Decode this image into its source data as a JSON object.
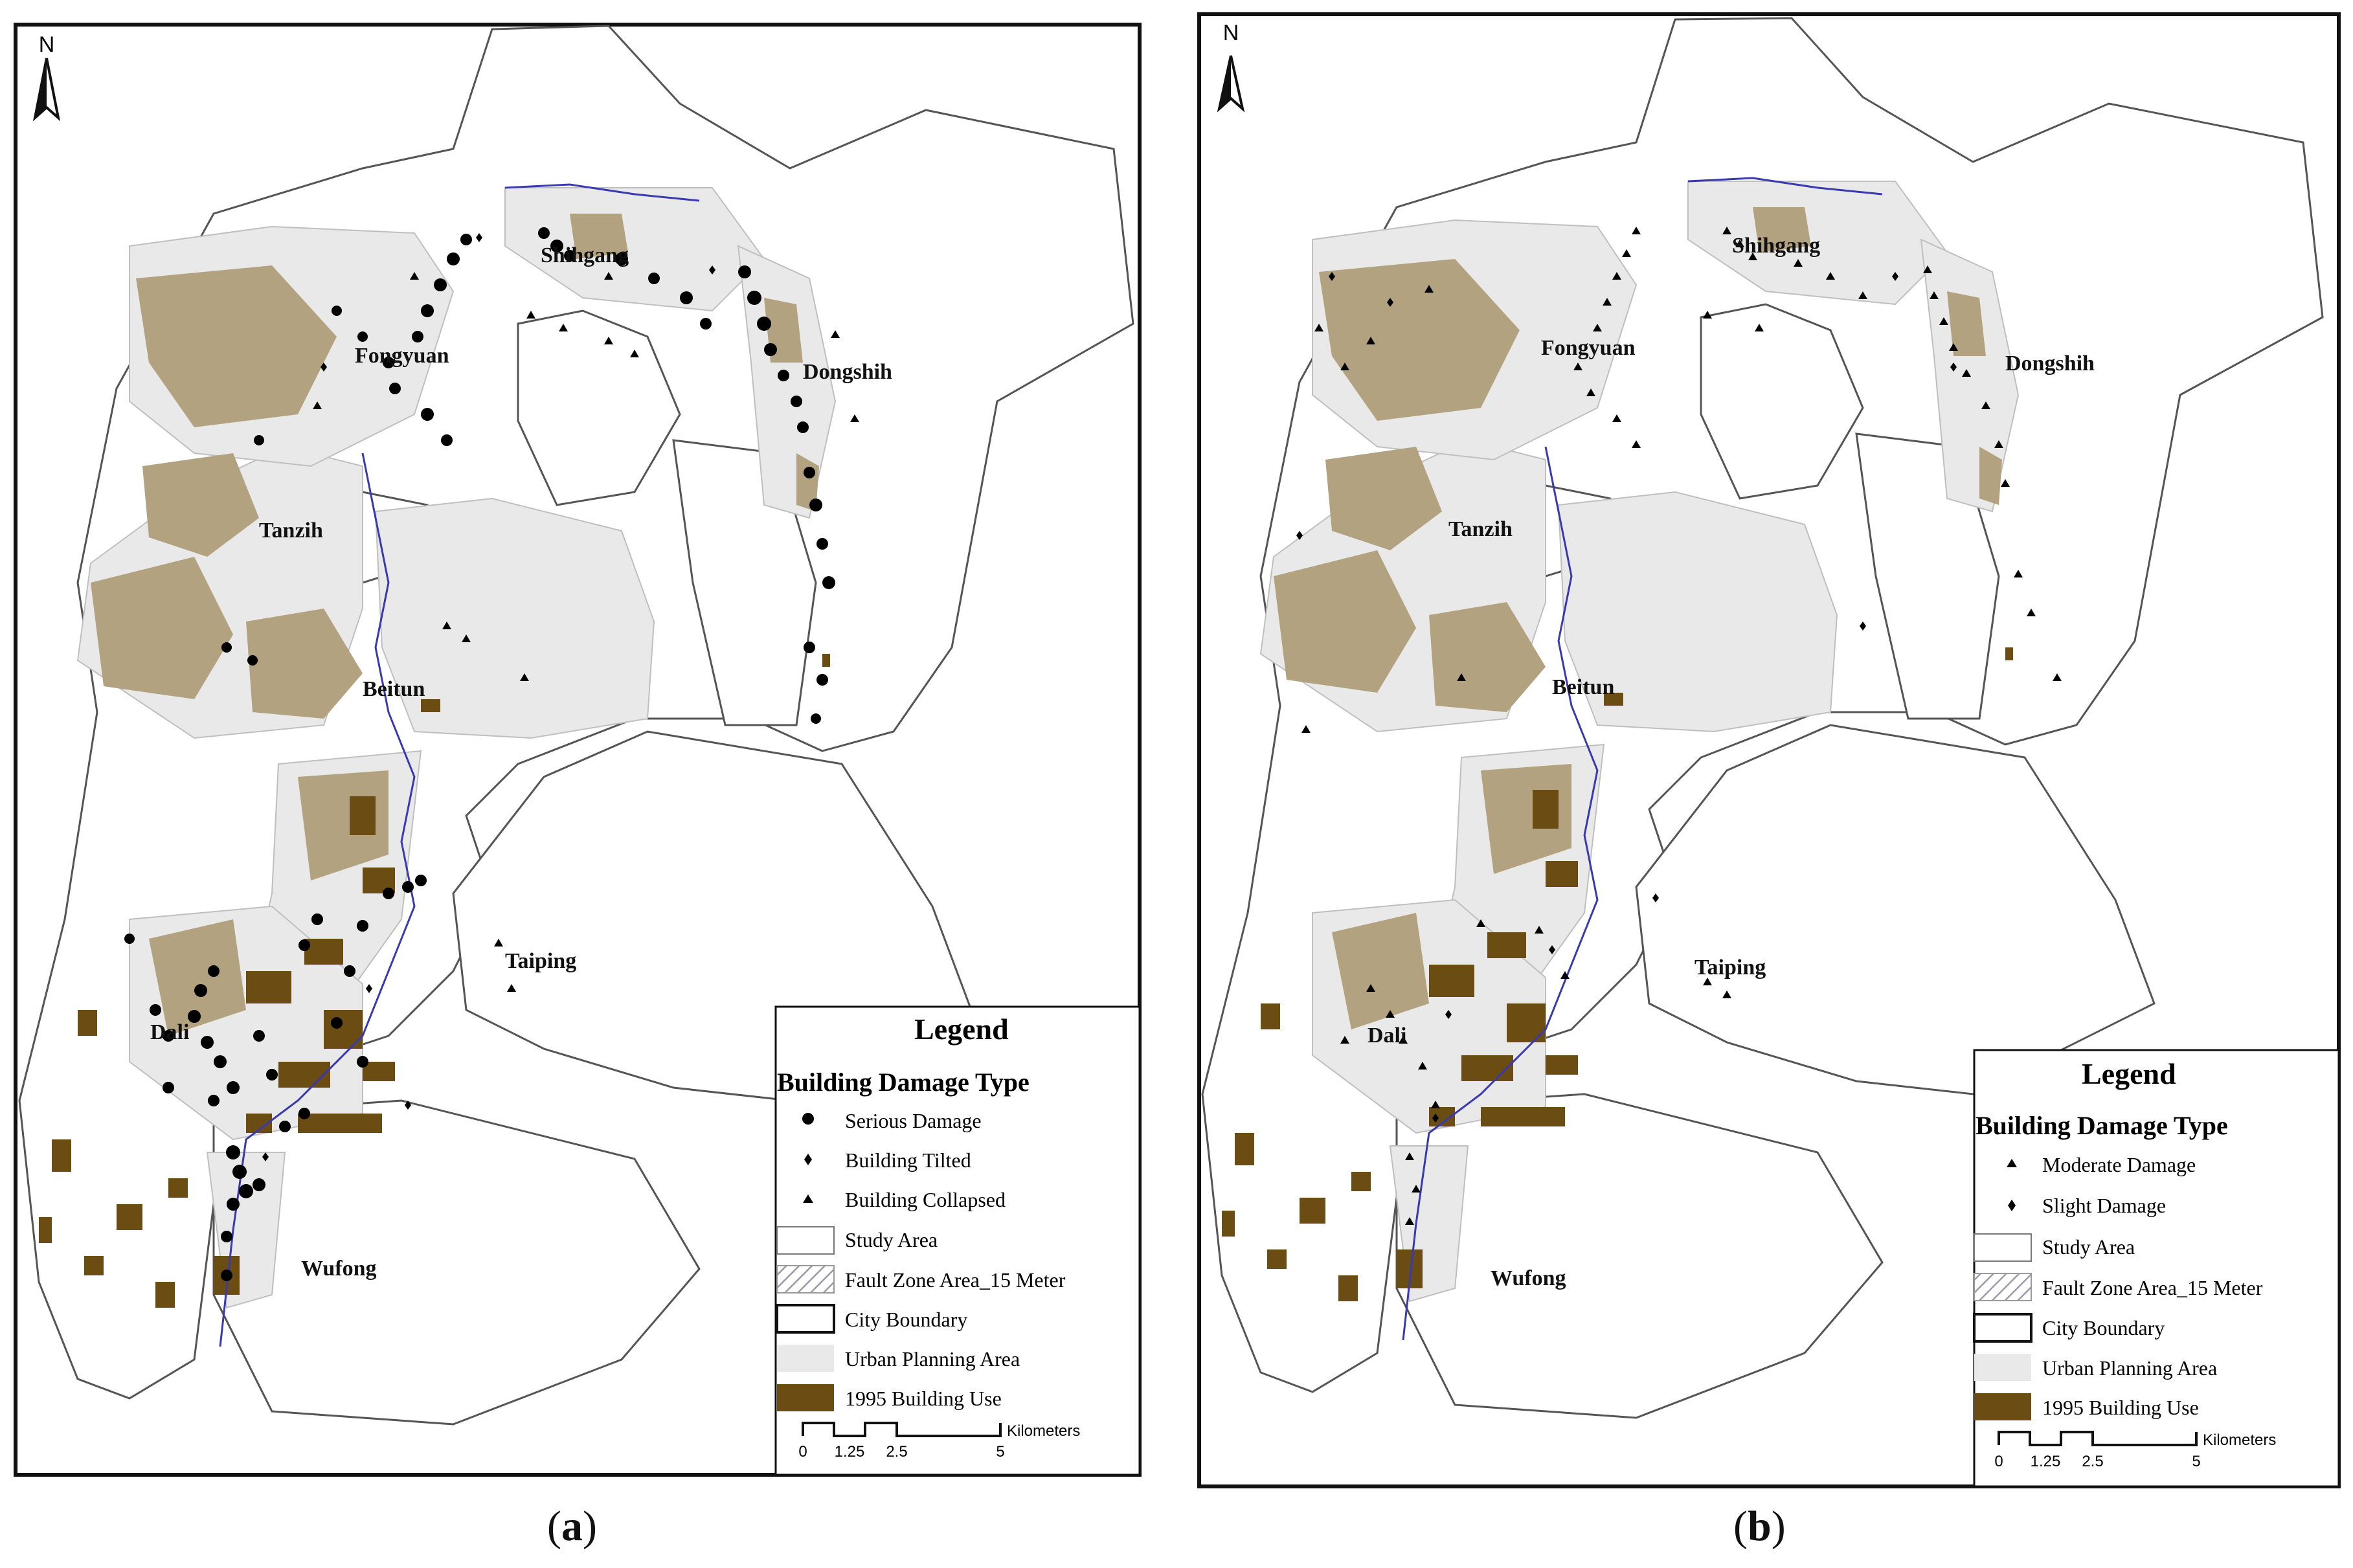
{
  "panels": [
    {
      "id": "a",
      "caption_letter": "a",
      "north_label": "N",
      "place_labels": [
        "Shihgang",
        "Fongyuan",
        "Dongshih",
        "Tanzih",
        "Beitun",
        "Taiping",
        "Dali",
        "Wufong"
      ],
      "legend": {
        "title": "Legend",
        "subtitle": "Building Damage Type",
        "items": [
          {
            "symbol": "dot",
            "label": "Serious Damage"
          },
          {
            "symbol": "diamond",
            "label": "Building Tilted"
          },
          {
            "symbol": "triangle",
            "label": "Building Collapsed"
          },
          {
            "symbol": "box-white",
            "label": "Study Area"
          },
          {
            "symbol": "box-hatch",
            "label": "Fault Zone Area_15 Meter"
          },
          {
            "symbol": "box-boundary",
            "label": "City Boundary"
          },
          {
            "symbol": "box-gray",
            "label": "Urban Planning Area"
          },
          {
            "symbol": "box-brown",
            "label": "1995 Building Use"
          }
        ],
        "scale": {
          "unit": "Kilometers",
          "ticks": [
            "0",
            "1.25",
            "2.5",
            "5"
          ]
        }
      }
    },
    {
      "id": "b",
      "caption_letter": "b",
      "north_label": "N",
      "place_labels": [
        "Shihgang",
        "Fongyuan",
        "Dongshih",
        "Tanzih",
        "Beitun",
        "Taiping",
        "Dali",
        "Wufong"
      ],
      "legend": {
        "title": "Legend",
        "subtitle": "Building Damage Type",
        "items": [
          {
            "symbol": "triangle",
            "label": "Moderate Damage"
          },
          {
            "symbol": "diamond",
            "label": "Slight Damage"
          },
          {
            "symbol": "box-white",
            "label": "Study Area"
          },
          {
            "symbol": "box-hatch",
            "label": "Fault Zone Area_15 Meter"
          },
          {
            "symbol": "box-boundary",
            "label": "City Boundary"
          },
          {
            "symbol": "box-gray",
            "label": "Urban Planning Area"
          },
          {
            "symbol": "box-brown",
            "label": "1995 Building Use"
          }
        ],
        "scale": {
          "unit": "Kilometers",
          "ticks": [
            "0",
            "1.25",
            "2.5",
            "5"
          ]
        }
      }
    }
  ],
  "colors": {
    "building_use": "#6b4c12",
    "building_use_light": "#b3a27f",
    "urban_planning": "#e9e9e9",
    "boundary": "#555555",
    "river": "#3a3ab0",
    "damage_marker": "#000000"
  }
}
